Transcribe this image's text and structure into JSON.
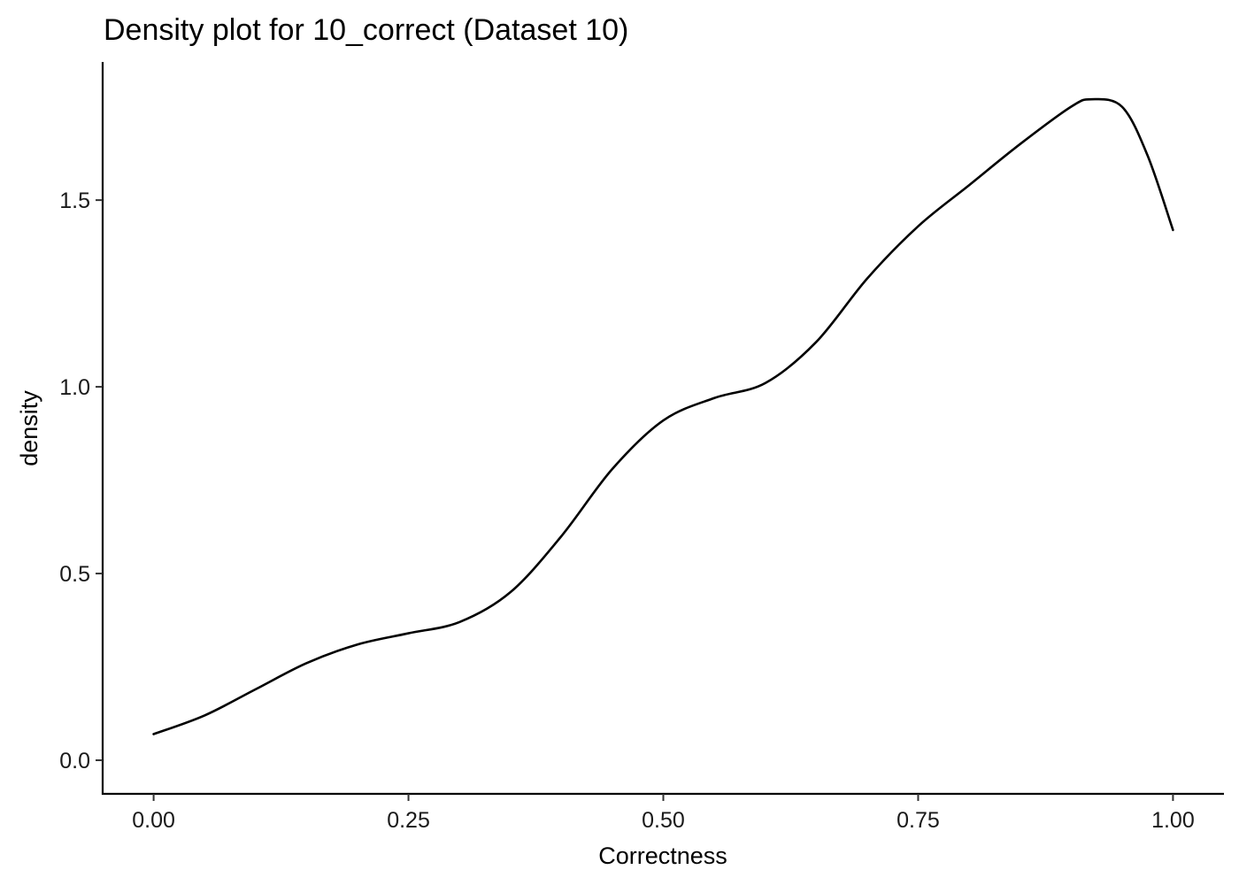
{
  "chart_data": {
    "type": "line",
    "title": "Density plot for 10_correct (Dataset 10)",
    "xlabel": "Correctness",
    "ylabel": "density",
    "xlim": [
      -0.05,
      1.05
    ],
    "ylim": [
      -0.09,
      1.87
    ],
    "x_ticks": [
      0.0,
      0.25,
      0.5,
      0.75,
      1.0
    ],
    "x_tick_labels": [
      "0.00",
      "0.25",
      "0.50",
      "0.75",
      "1.00"
    ],
    "y_ticks": [
      0.0,
      0.5,
      1.0,
      1.5
    ],
    "y_tick_labels": [
      "0.0",
      "0.5",
      "1.0",
      "1.5"
    ],
    "grid": false,
    "legend": "none",
    "line_color": "#000000",
    "series": [
      {
        "x": [
          0.0,
          0.05,
          0.1,
          0.15,
          0.2,
          0.25,
          0.3,
          0.35,
          0.4,
          0.45,
          0.5,
          0.55,
          0.6,
          0.65,
          0.7,
          0.75,
          0.8,
          0.85,
          0.9,
          0.92,
          0.95,
          0.975,
          1.0
        ],
        "values": [
          0.07,
          0.12,
          0.19,
          0.26,
          0.31,
          0.34,
          0.37,
          0.45,
          0.6,
          0.78,
          0.91,
          0.97,
          1.01,
          1.12,
          1.29,
          1.43,
          1.54,
          1.65,
          1.75,
          1.77,
          1.75,
          1.62,
          1.42
        ]
      }
    ]
  }
}
